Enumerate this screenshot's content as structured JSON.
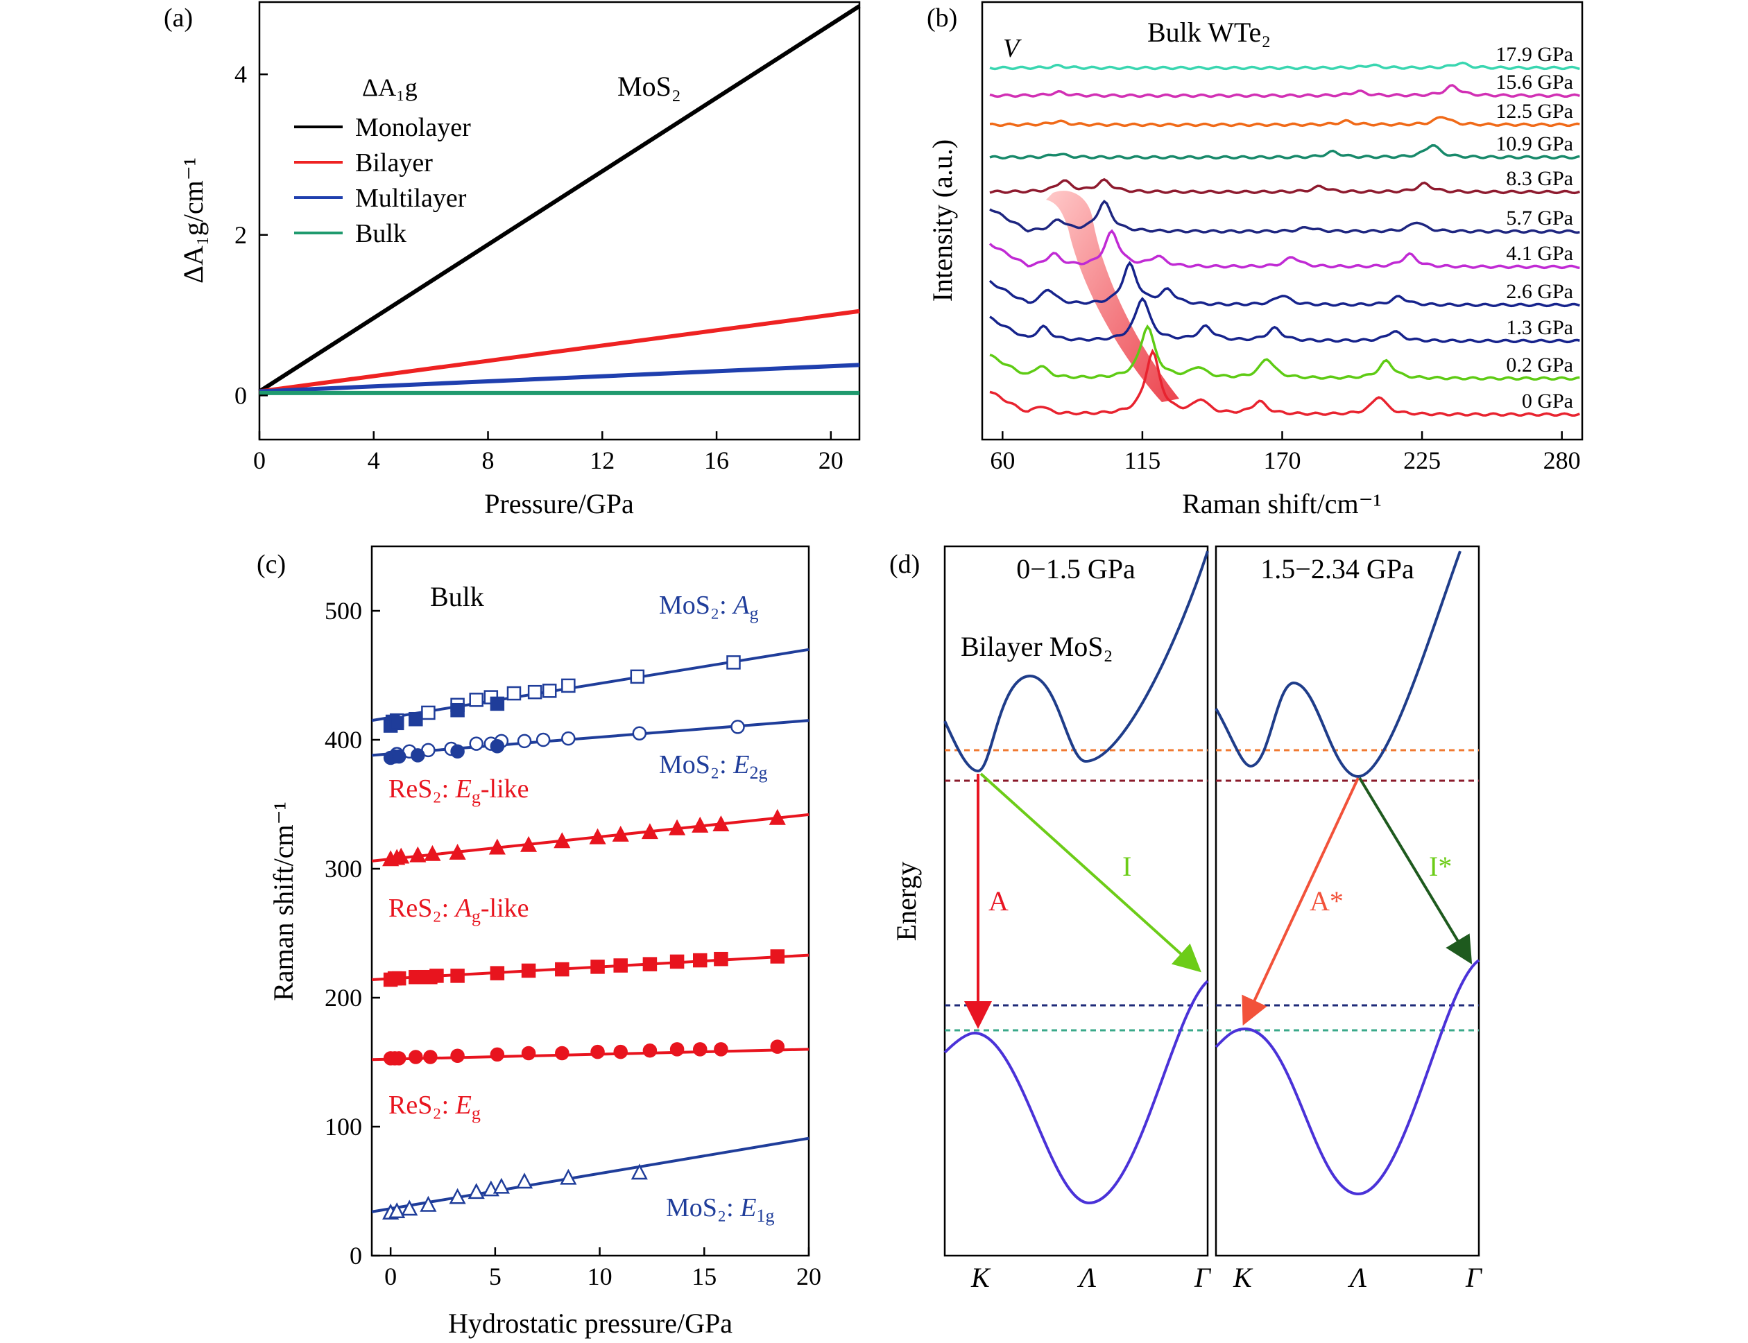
{
  "chart_data": [
    {
      "panel": "(a)",
      "type": "line",
      "title": "MoS₂",
      "xlabel": "Pressure/GPa",
      "ylabel": "ΔA₁g/cm⁻¹",
      "legend_title": "ΔA₁g",
      "xlim": [
        0,
        21
      ],
      "ylim": [
        -0.55,
        4.9
      ],
      "xticks": [
        0,
        4,
        8,
        12,
        16,
        20
      ],
      "yticks": [
        0,
        2,
        4
      ],
      "series": [
        {
          "name": "Monolayer",
          "color": "#000000",
          "x": [
            0,
            21
          ],
          "y": [
            0.05,
            4.85
          ]
        },
        {
          "name": "Bilayer",
          "color": "#ee2222",
          "x": [
            0,
            21
          ],
          "y": [
            0.05,
            1.05
          ]
        },
        {
          "name": "Multilayer",
          "color": "#1f3fae",
          "x": [
            0,
            21
          ],
          "y": [
            0.05,
            0.38
          ]
        },
        {
          "name": "Bulk",
          "color": "#1f9a6e",
          "x": [
            0,
            21
          ],
          "y": [
            0.03,
            0.03
          ]
        }
      ]
    },
    {
      "panel": "(b)",
      "type": "line",
      "title": "Bulk WTe₂",
      "xlabel": "Raman shift/cm⁻¹",
      "ylabel": "Intensity (a.u.)",
      "peak_label": "V",
      "xlim": [
        52,
        288
      ],
      "xticks": [
        60,
        115,
        170,
        225,
        280
      ],
      "series": [
        {
          "name": "0 GPa",
          "color": "#e8232f",
          "peaks": [
            [
              75,
              12
            ],
            [
              119,
              90
            ],
            [
              138,
              20
            ],
            [
              161,
              18
            ],
            [
              208,
              26
            ]
          ]
        },
        {
          "name": "0.2 GPa",
          "color": "#5ecb14",
          "peaks": [
            [
              75,
              18
            ],
            [
              117,
              75
            ],
            [
              137,
              15
            ],
            [
              164,
              28
            ],
            [
              211,
              25
            ]
          ]
        },
        {
          "name": "1.3 GPa",
          "color": "#16238c",
          "peaks": [
            [
              76,
              20
            ],
            [
              115,
              62
            ],
            [
              140,
              20
            ],
            [
              167,
              18
            ],
            [
              214,
              14
            ]
          ]
        },
        {
          "name": "2.6 GPa",
          "color": "#16238c",
          "peaks": [
            [
              78,
              22
            ],
            [
              110,
              58
            ],
            [
              125,
              20
            ],
            [
              170,
              14
            ],
            [
              216,
              12
            ]
          ]
        },
        {
          "name": "4.1 GPa",
          "color": "#c02ad4",
          "peaks": [
            [
              80,
              18
            ],
            [
              103,
              50
            ],
            [
              121,
              14
            ],
            [
              174,
              14
            ],
            [
              220,
              18
            ]
          ]
        },
        {
          "name": "5.7 GPa",
          "color": "#1e2680",
          "peaks": [
            [
              82,
              16
            ],
            [
              100,
              42
            ],
            [
              180,
              6
            ],
            [
              223,
              14
            ]
          ]
        },
        {
          "name": "8.3 GPa",
          "color": "#8e1a2e",
          "peaks": [
            [
              84,
              16
            ],
            [
              100,
              16
            ],
            [
              185,
              8
            ],
            [
              226,
              12
            ]
          ]
        },
        {
          "name": "10.9 GPa",
          "color": "#17896a",
          "peaks": [
            [
              82,
              5
            ],
            [
              190,
              8
            ],
            [
              229,
              18
            ]
          ]
        },
        {
          "name": "12.5 GPa",
          "color": "#f06a18",
          "peaks": [
            [
              82,
              5
            ],
            [
              195,
              5
            ],
            [
              233,
              12
            ]
          ]
        },
        {
          "name": "15.6 GPa",
          "color": "#d12fb4",
          "peaks": [
            [
              82,
              5
            ],
            [
              200,
              6
            ],
            [
              237,
              14
            ]
          ]
        },
        {
          "name": "17.9 GPa",
          "color": "#39d6b0",
          "peaks": [
            [
              82,
              3
            ],
            [
              205,
              4
            ],
            [
              240,
              7
            ]
          ]
        }
      ]
    },
    {
      "panel": "(c)",
      "type": "scatter",
      "title": "Bulk",
      "xlabel": "Hydrostatic pressure/GPa",
      "ylabel": "Raman shift/cm⁻¹",
      "xlim": [
        -0.9,
        20
      ],
      "ylim": [
        0,
        550
      ],
      "xticks": [
        0,
        5,
        10,
        15,
        20
      ],
      "yticks": [
        0,
        100,
        200,
        300,
        400,
        500
      ],
      "series": [
        {
          "name": "MoS₂: A_g",
          "color": "#1f3d9a",
          "fit": [
            415,
            470
          ],
          "open_marker": "square",
          "open_x": [
            0.3,
            1.8,
            3.2,
            4.1,
            4.8,
            5.9,
            6.9,
            7.6,
            8.5,
            11.8,
            16.4
          ],
          "open_y": [
            415,
            421,
            427,
            431,
            433,
            436,
            437,
            438,
            442,
            449,
            460
          ],
          "filled_marker": "square",
          "filled_x": [
            0.0,
            0.1,
            0.3,
            1.2,
            3.2,
            5.1
          ],
          "filled_y": [
            411,
            414,
            413,
            416,
            423,
            428
          ]
        },
        {
          "name": "MoS₂: E_2g",
          "color": "#1f3d9a",
          "fit": [
            388,
            415
          ],
          "open_marker": "circle",
          "open_x": [
            0.3,
            0.9,
            1.8,
            2.9,
            4.1,
            4.8,
            5.3,
            6.4,
            7.3,
            8.5,
            11.9,
            16.6
          ],
          "open_y": [
            389,
            391,
            392,
            393,
            397,
            397,
            399,
            399,
            400,
            401,
            405,
            410
          ],
          "filled_marker": "circle",
          "filled_x": [
            0.0,
            0.2,
            0.4,
            1.3,
            3.2,
            5.1
          ],
          "filled_y": [
            386,
            387,
            387,
            388,
            391,
            395
          ]
        },
        {
          "name": "ReS₂: E_g-like",
          "color": "#e8141e",
          "fit": [
            306,
            342
          ],
          "filled_marker": "triangle",
          "filled_x": [
            0.0,
            0.3,
            0.5,
            1.3,
            2.0,
            3.2,
            5.1,
            6.6,
            8.2,
            9.9,
            11.0,
            12.4,
            13.7,
            14.8,
            15.8,
            18.5
          ],
          "filled_y": [
            307,
            308,
            309,
            310,
            311,
            312,
            316,
            318,
            321,
            324,
            326,
            328,
            331,
            333,
            334,
            339
          ]
        },
        {
          "name": "ReS₂: A_g-like",
          "color": "#e8141e",
          "fit": [
            214,
            233
          ],
          "filled_marker": "square",
          "filled_x": [
            0.0,
            0.2,
            0.4,
            1.2,
            1.6,
            1.9,
            2.2,
            3.2,
            5.1,
            6.6,
            8.2,
            9.9,
            11.0,
            12.4,
            13.7,
            14.8,
            15.8,
            18.5
          ],
          "filled_y": [
            214,
            215,
            215,
            216,
            216,
            216,
            217,
            217,
            219,
            221,
            222,
            224,
            225,
            226,
            228,
            229,
            230,
            232
          ]
        },
        {
          "name": "ReS₂: E_g",
          "color": "#e8141e",
          "fit": [
            152,
            160
          ],
          "filled_marker": "circle",
          "filled_x": [
            0.0,
            0.2,
            0.4,
            1.2,
            1.9,
            3.2,
            5.1,
            6.6,
            8.2,
            9.9,
            11.0,
            12.4,
            13.7,
            14.8,
            15.8,
            18.5
          ],
          "filled_y": [
            153,
            153,
            153,
            154,
            154,
            155,
            156,
            157,
            157,
            158,
            158,
            159,
            160,
            160,
            160,
            162
          ]
        },
        {
          "name": "MoS₂: E_1g",
          "color": "#1f3d9a",
          "fit": [
            34,
            91
          ],
          "open_marker": "triangle",
          "open_x": [
            0.0,
            0.3,
            0.9,
            1.8,
            3.2,
            4.1,
            4.8,
            5.3,
            6.4,
            8.5,
            11.9
          ],
          "open_y": [
            33,
            34,
            36,
            39,
            45,
            49,
            51,
            53,
            57,
            60,
            64
          ]
        }
      ]
    },
    {
      "panel": "(d)",
      "type": "line",
      "title": "Bilayer MoS₂",
      "ylabel": "Energy",
      "subpanels": [
        {
          "title": "0−1.5 GPa",
          "ticks": [
            "K",
            "Λ",
            "Γ"
          ],
          "transitions": [
            {
              "label": "A",
              "color": "#e81422"
            },
            {
              "label": "I",
              "color": "#6ccc18"
            }
          ]
        },
        {
          "title": "1.5−2.34 GPa",
          "ticks": [
            "K",
            "Λ",
            "Γ"
          ],
          "transitions": [
            {
              "label": "A*",
              "color": "#f2523a"
            },
            {
              "label": "I*",
              "color": "#1e5a1e"
            }
          ]
        }
      ],
      "level_colors": [
        "#f07a32",
        "#8a1a2a",
        "#1e2a78",
        "#3aa88a"
      ]
    }
  ]
}
